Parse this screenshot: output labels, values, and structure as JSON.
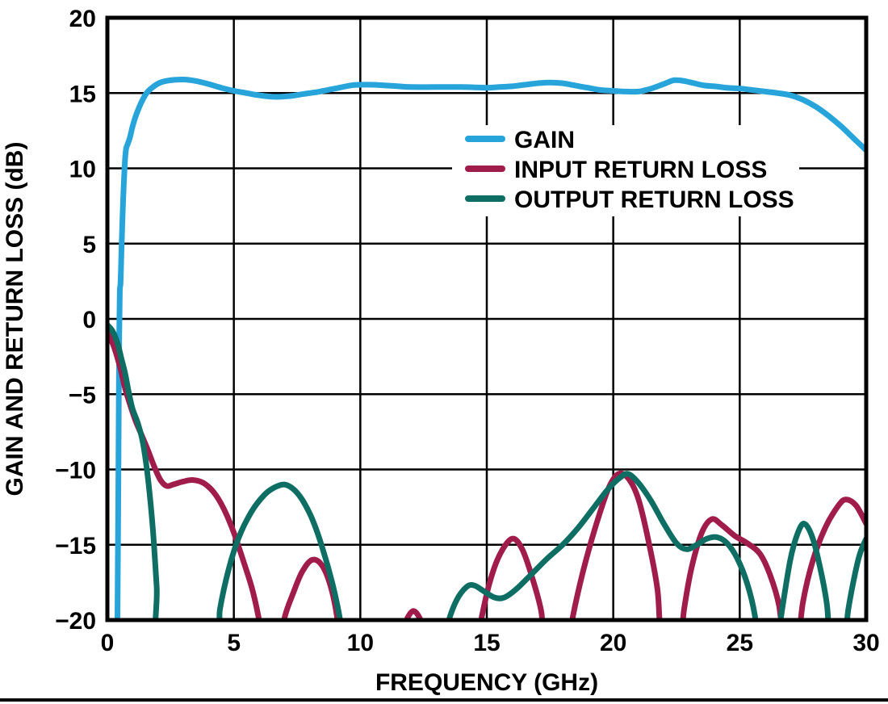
{
  "chart_data": {
    "type": "line",
    "title": "",
    "xlabel": "FREQUENCY (GHz)",
    "ylabel": "GAIN AND RETURN LOSS (dB)",
    "xlim": [
      0,
      30
    ],
    "ylim": [
      -20,
      20
    ],
    "xticks": [
      0,
      5,
      10,
      15,
      20,
      25,
      30
    ],
    "yticks": [
      -20,
      -15,
      -10,
      -5,
      0,
      5,
      10,
      15,
      20
    ],
    "grid": true,
    "legend_position": "inside-top-center",
    "axis_color": "#000000",
    "background_color": "#ffffff",
    "series": [
      {
        "name": "GAIN",
        "color": "#27A5DB",
        "points": [
          [
            0.4,
            -20
          ],
          [
            0.43,
            -12
          ],
          [
            0.45,
            -6
          ],
          [
            0.47,
            -1
          ],
          [
            0.49,
            1.8
          ],
          [
            0.52,
            2.4
          ],
          [
            0.56,
            4.6
          ],
          [
            0.6,
            6.8
          ],
          [
            0.65,
            9.0
          ],
          [
            0.7,
            10.6
          ],
          [
            0.74,
            11.3
          ],
          [
            0.8,
            11.6
          ],
          [
            0.9,
            12.1
          ],
          [
            1.0,
            12.8
          ],
          [
            1.15,
            13.6
          ],
          [
            1.35,
            14.4
          ],
          [
            1.55,
            15.0
          ],
          [
            1.8,
            15.4
          ],
          [
            2.1,
            15.7
          ],
          [
            2.5,
            15.85
          ],
          [
            3.0,
            15.9
          ],
          [
            3.5,
            15.8
          ],
          [
            4.0,
            15.6
          ],
          [
            4.5,
            15.35
          ],
          [
            5.0,
            15.15
          ],
          [
            5.5,
            15.0
          ],
          [
            6.0,
            14.85
          ],
          [
            6.6,
            14.75
          ],
          [
            7.2,
            14.8
          ],
          [
            7.8,
            14.95
          ],
          [
            8.4,
            15.1
          ],
          [
            9.0,
            15.3
          ],
          [
            9.6,
            15.5
          ],
          [
            10.0,
            15.55
          ],
          [
            10.5,
            15.55
          ],
          [
            11.0,
            15.5
          ],
          [
            11.5,
            15.45
          ],
          [
            12.0,
            15.4
          ],
          [
            13.0,
            15.4
          ],
          [
            14.0,
            15.4
          ],
          [
            15.0,
            15.35
          ],
          [
            15.5,
            15.4
          ],
          [
            16.0,
            15.45
          ],
          [
            16.5,
            15.55
          ],
          [
            17.0,
            15.65
          ],
          [
            17.5,
            15.7
          ],
          [
            18.0,
            15.65
          ],
          [
            18.5,
            15.5
          ],
          [
            19.0,
            15.35
          ],
          [
            19.5,
            15.2
          ],
          [
            20.0,
            15.15
          ],
          [
            20.5,
            15.1
          ],
          [
            21.0,
            15.1
          ],
          [
            21.5,
            15.3
          ],
          [
            22.0,
            15.6
          ],
          [
            22.4,
            15.85
          ],
          [
            22.8,
            15.8
          ],
          [
            23.2,
            15.65
          ],
          [
            23.6,
            15.5
          ],
          [
            24.0,
            15.45
          ],
          [
            24.5,
            15.35
          ],
          [
            25.0,
            15.3
          ],
          [
            25.5,
            15.2
          ],
          [
            26.0,
            15.1
          ],
          [
            26.5,
            15.0
          ],
          [
            27.0,
            14.85
          ],
          [
            27.5,
            14.55
          ],
          [
            28.0,
            14.1
          ],
          [
            28.5,
            13.5
          ],
          [
            29.0,
            12.8
          ],
          [
            29.5,
            12.0
          ],
          [
            30.0,
            11.2
          ]
        ]
      },
      {
        "name": "INPUT RETURN LOSS",
        "color": "#A01D4B",
        "points": [
          [
            0,
            -0.9
          ],
          [
            0.25,
            -1.8
          ],
          [
            0.5,
            -3.2
          ],
          [
            0.7,
            -4.6
          ],
          [
            0.9,
            -5.7
          ],
          [
            1.1,
            -6.7
          ],
          [
            1.35,
            -7.7
          ],
          [
            1.6,
            -8.7
          ],
          [
            1.85,
            -9.8
          ],
          [
            2.1,
            -10.7
          ],
          [
            2.35,
            -11.1
          ],
          [
            2.6,
            -11.0
          ],
          [
            3.0,
            -10.8
          ],
          [
            3.4,
            -10.7
          ],
          [
            3.8,
            -10.9
          ],
          [
            4.2,
            -11.5
          ],
          [
            4.6,
            -12.6
          ],
          [
            5.0,
            -14.2
          ],
          [
            5.4,
            -16.2
          ],
          [
            5.75,
            -18.1
          ],
          [
            6.05,
            -20.5
          ],
          [
            6.15,
            -22
          ],
          [
            6.85,
            -22
          ],
          [
            7.0,
            -19.9
          ],
          [
            7.35,
            -18.2
          ],
          [
            7.7,
            -16.8
          ],
          [
            8.1,
            -16.0
          ],
          [
            8.5,
            -16.4
          ],
          [
            8.85,
            -17.9
          ],
          [
            9.1,
            -20
          ],
          [
            9.2,
            -22
          ],
          [
            11.5,
            -22
          ],
          [
            11.75,
            -20.3
          ],
          [
            12.1,
            -19.4
          ],
          [
            12.45,
            -20.3
          ],
          [
            12.6,
            -22
          ],
          [
            14.55,
            -22
          ],
          [
            14.75,
            -20.2
          ],
          [
            15.1,
            -17.6
          ],
          [
            15.5,
            -15.7
          ],
          [
            16.0,
            -14.6
          ],
          [
            16.4,
            -15.3
          ],
          [
            16.8,
            -17.2
          ],
          [
            17.15,
            -19.4
          ],
          [
            17.35,
            -22
          ],
          [
            18.2,
            -22
          ],
          [
            18.4,
            -19.8
          ],
          [
            18.8,
            -16.8
          ],
          [
            19.3,
            -13.8
          ],
          [
            19.8,
            -11.3
          ],
          [
            20.2,
            -10.3
          ],
          [
            20.6,
            -10.6
          ],
          [
            21.0,
            -12.0
          ],
          [
            21.4,
            -14.8
          ],
          [
            21.75,
            -18.0
          ],
          [
            21.95,
            -22
          ],
          [
            22.6,
            -22
          ],
          [
            22.8,
            -19.3
          ],
          [
            23.1,
            -16.5
          ],
          [
            23.5,
            -14.2
          ],
          [
            23.9,
            -13.3
          ],
          [
            24.3,
            -13.7
          ],
          [
            24.8,
            -14.4
          ],
          [
            25.3,
            -14.9
          ],
          [
            25.8,
            -15.6
          ],
          [
            26.2,
            -17.0
          ],
          [
            26.55,
            -19.0
          ],
          [
            26.8,
            -22
          ],
          [
            27.25,
            -22
          ],
          [
            27.5,
            -18.8
          ],
          [
            27.9,
            -16.0
          ],
          [
            28.4,
            -13.8
          ],
          [
            28.9,
            -12.4
          ],
          [
            29.2,
            -12.0
          ],
          [
            29.6,
            -12.4
          ],
          [
            30,
            -13.6
          ]
        ]
      },
      {
        "name": "OUTPUT RETURN LOSS",
        "color": "#0F6E63",
        "points": [
          [
            0,
            -0.4
          ],
          [
            0.2,
            -0.8
          ],
          [
            0.4,
            -1.6
          ],
          [
            0.55,
            -2.6
          ],
          [
            0.7,
            -3.6
          ],
          [
            0.85,
            -4.9
          ],
          [
            1.0,
            -6.0
          ],
          [
            1.2,
            -6.9
          ],
          [
            1.4,
            -8.2
          ],
          [
            1.6,
            -10.5
          ],
          [
            1.8,
            -14.0
          ],
          [
            1.95,
            -17.8
          ],
          [
            2.1,
            -22
          ],
          [
            4.25,
            -22
          ],
          [
            4.45,
            -19.3
          ],
          [
            4.8,
            -16.6
          ],
          [
            5.2,
            -14.5
          ],
          [
            5.7,
            -12.8
          ],
          [
            6.2,
            -11.7
          ],
          [
            6.6,
            -11.2
          ],
          [
            7.0,
            -11.0
          ],
          [
            7.35,
            -11.3
          ],
          [
            7.7,
            -12.0
          ],
          [
            8.1,
            -13.3
          ],
          [
            8.5,
            -15.2
          ],
          [
            8.9,
            -17.6
          ],
          [
            9.2,
            -20
          ],
          [
            9.3,
            -22
          ],
          [
            13.25,
            -22
          ],
          [
            13.45,
            -20.3
          ],
          [
            13.8,
            -18.7
          ],
          [
            14.2,
            -17.8
          ],
          [
            14.5,
            -17.7
          ],
          [
            14.9,
            -18.1
          ],
          [
            15.3,
            -18.5
          ],
          [
            15.7,
            -18.5
          ],
          [
            16.2,
            -17.9
          ],
          [
            16.8,
            -16.9
          ],
          [
            17.4,
            -15.9
          ],
          [
            18.0,
            -15.0
          ],
          [
            18.6,
            -13.9
          ],
          [
            19.2,
            -12.6
          ],
          [
            19.8,
            -11.3
          ],
          [
            20.3,
            -10.5
          ],
          [
            20.6,
            -10.3
          ],
          [
            21.0,
            -10.9
          ],
          [
            21.5,
            -12.1
          ],
          [
            22.0,
            -13.6
          ],
          [
            22.5,
            -14.9
          ],
          [
            22.9,
            -15.3
          ],
          [
            23.3,
            -15.0
          ],
          [
            23.7,
            -14.6
          ],
          [
            24.1,
            -14.5
          ],
          [
            24.5,
            -14.9
          ],
          [
            24.9,
            -15.9
          ],
          [
            25.3,
            -17.6
          ],
          [
            25.6,
            -19.7
          ],
          [
            25.75,
            -22
          ],
          [
            26.45,
            -22
          ],
          [
            26.65,
            -19.6
          ],
          [
            27.0,
            -16.0
          ],
          [
            27.3,
            -14.2
          ],
          [
            27.55,
            -13.6
          ],
          [
            27.85,
            -14.4
          ],
          [
            28.15,
            -16.3
          ],
          [
            28.45,
            -19.0
          ],
          [
            28.6,
            -22
          ],
          [
            29.1,
            -22
          ],
          [
            29.3,
            -19.2
          ],
          [
            29.7,
            -15.9
          ],
          [
            30,
            -14.6
          ]
        ]
      }
    ]
  }
}
